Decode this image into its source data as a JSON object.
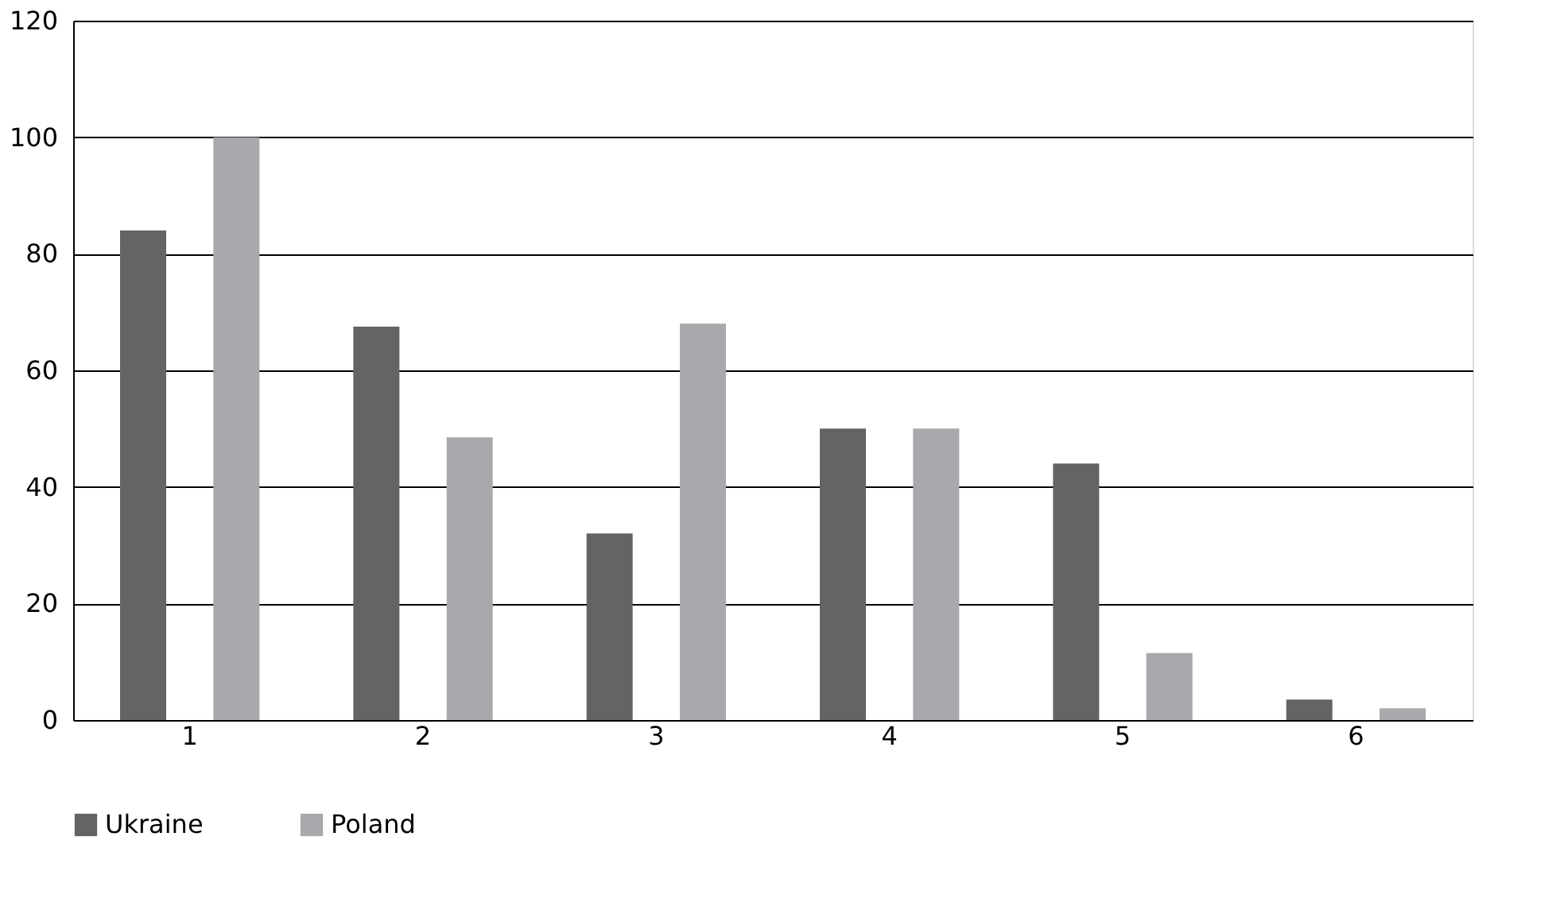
{
  "chart_data": {
    "type": "bar",
    "categories": [
      "1",
      "2",
      "3",
      "4",
      "5",
      "6"
    ],
    "series": [
      {
        "name": "Ukraine",
        "color": "#646466",
        "values": [
          84,
          67.5,
          32,
          50,
          44,
          3.5
        ]
      },
      {
        "name": "Poland",
        "color": "#a8a9ac",
        "values": [
          100,
          48.5,
          68,
          50,
          11.5,
          2
        ]
      }
    ],
    "ylim": [
      0,
      120
    ],
    "yticks": [
      0,
      20,
      40,
      60,
      80,
      100,
      120
    ],
    "grid": "y",
    "legend": "bottom"
  }
}
